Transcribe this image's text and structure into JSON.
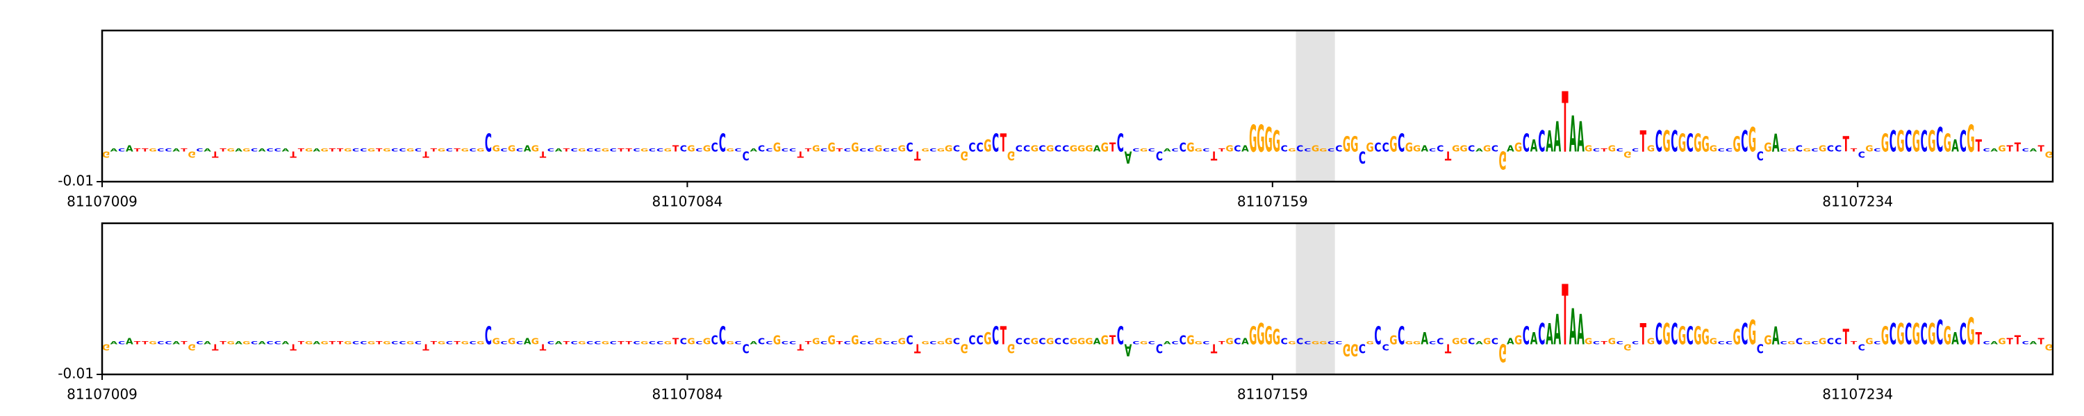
{
  "chart_data": [
    {
      "type": "logo",
      "xlim": [
        81107009,
        81107259
      ],
      "xticks": [
        81107009,
        81107084,
        81107159,
        81107234
      ],
      "ylim": [
        -0.01,
        0.04
      ],
      "yticks": [
        -0.01
      ],
      "highlight": [
        81107162,
        81107167
      ],
      "colors": {
        "A": "#008000",
        "C": "#0000ff",
        "G": "#ffa500",
        "T": "#ff0000"
      },
      "letters": [
        "G",
        "A",
        "C",
        "A",
        "T",
        "T",
        "G",
        "C",
        "C",
        "A",
        "T",
        "G",
        "C",
        "A",
        "T",
        "T",
        "G",
        "A",
        "G",
        "C",
        "A",
        "C",
        "C",
        "A",
        "T",
        "T",
        "G",
        "A",
        "G",
        "T",
        "T",
        "G",
        "C",
        "C",
        "G",
        "T",
        "G",
        "C",
        "C",
        "G",
        "C",
        "T",
        "T",
        "G",
        "C",
        "T",
        "G",
        "C",
        "G",
        "C",
        "G",
        "C",
        "G",
        "C",
        "A",
        "G",
        "T",
        "C",
        "A",
        "T",
        "C",
        "G",
        "C",
        "C",
        "G",
        "C",
        "T",
        "T",
        "C",
        "G",
        "C",
        "C",
        "G",
        "T",
        "C",
        "G",
        "C",
        "G",
        "C",
        "C",
        "G",
        "C",
        "C",
        "A",
        "C",
        "C",
        "G",
        "C",
        "C",
        "T",
        "T",
        "G",
        "C",
        "G",
        "T",
        "C",
        "G",
        "C",
        "C",
        "G",
        "C",
        "C",
        "G",
        "C",
        "T",
        "G",
        "C",
        "G",
        "G",
        "C",
        "G",
        "C",
        "C",
        "G",
        "C",
        "T",
        "G",
        "C",
        "C",
        "G",
        "C",
        "G",
        "C",
        "C",
        "G",
        "G",
        "G",
        "A",
        "G",
        "T",
        "C",
        "A",
        "C",
        "G",
        "C",
        "C",
        "A",
        "C",
        "C",
        "G",
        "G",
        "C",
        "T",
        "T",
        "G",
        "C",
        "A",
        "G",
        "G",
        "G",
        "G",
        "C",
        "G",
        "C",
        "C",
        "G",
        "G",
        "C",
        "C",
        "G",
        "G",
        "C",
        "G",
        "C",
        "C",
        "G",
        "C",
        "G",
        "G",
        "A",
        "C",
        "C",
        "T",
        "G",
        "G",
        "C",
        "A",
        "G",
        "C",
        "G",
        "A",
        "G",
        "C",
        "A",
        "C",
        "A",
        "A",
        "T",
        "A",
        "A",
        "G",
        "C",
        "T",
        "G",
        "C",
        "G",
        "C",
        "T",
        "G",
        "C",
        "G",
        "C",
        "G",
        "C",
        "G",
        "G",
        "G",
        "C",
        "C",
        "G",
        "C",
        "G",
        "C",
        "G",
        "A",
        "C",
        "G",
        "C",
        "G",
        "C",
        "G",
        "C",
        "C",
        "T",
        "T",
        "C",
        "G",
        "C",
        "G",
        "C",
        "G",
        "C",
        "G",
        "C",
        "G",
        "C",
        "G",
        "A",
        "C",
        "G",
        "T",
        "C",
        "A",
        "G",
        "T",
        "T",
        "C",
        "A",
        "T",
        "G"
      ],
      "values": [
        -0.002,
        0.001,
        0.001,
        0.002,
        0.001,
        0.001,
        0.001,
        0.001,
        0.001,
        0.001,
        0.001,
        -0.002,
        0.001,
        0.001,
        -0.002,
        0.001,
        0.001,
        0.001,
        0.001,
        0.001,
        0.001,
        0.001,
        0.001,
        0.001,
        -0.002,
        0.001,
        0.001,
        0.001,
        0.001,
        0.001,
        0.001,
        0.001,
        0.001,
        0.001,
        0.001,
        0.001,
        0.001,
        0.001,
        0.001,
        0.001,
        0.001,
        -0.002,
        0.001,
        0.001,
        0.001,
        0.001,
        0.001,
        0.001,
        0.001,
        0.006,
        0.002,
        0.001,
        0.002,
        0.001,
        0.002,
        0.002,
        -0.002,
        0.001,
        0.001,
        0.001,
        0.001,
        0.001,
        0.001,
        0.001,
        0.001,
        0.001,
        0.001,
        0.001,
        0.001,
        0.001,
        0.001,
        0.001,
        0.001,
        0.002,
        0.002,
        0.002,
        0.001,
        0.002,
        0.003,
        0.006,
        0.001,
        0.001,
        -0.003,
        0.001,
        0.002,
        0.001,
        0.003,
        0.001,
        0.001,
        -0.002,
        0.001,
        0.002,
        0.001,
        0.003,
        0.001,
        0.001,
        0.003,
        0.001,
        0.001,
        0.002,
        0.001,
        0.001,
        0.002,
        0.003,
        -0.003,
        0.001,
        0.001,
        0.001,
        0.002,
        0.002,
        -0.003,
        0.003,
        0.003,
        0.004,
        0.006,
        0.006,
        -0.003,
        0.002,
        0.002,
        0.002,
        0.002,
        0.002,
        0.002,
        0.002,
        0.002,
        0.002,
        0.002,
        0.002,
        0.003,
        0.003,
        0.006,
        -0.004,
        0.001,
        0.001,
        0.001,
        -0.003,
        0.001,
        0.001,
        0.003,
        0.003,
        0.001,
        0.001,
        -0.003,
        0.001,
        0.002,
        0.002,
        0.002,
        0.009,
        0.009,
        0.008,
        0.007,
        0.002,
        0.001,
        0.002,
        0.001,
        0.002,
        0.001,
        0.001,
        0.002,
        0.005,
        0.005,
        -0.004,
        0.003,
        0.003,
        0.003,
        0.005,
        0.006,
        0.003,
        0.002,
        0.002,
        0.001,
        0.002,
        -0.003,
        0.002,
        0.002,
        0.002,
        0.001,
        0.002,
        0.002,
        -0.006,
        0.002,
        0.003,
        0.006,
        0.004,
        0.007,
        0.007,
        0.01,
        0.02,
        0.012,
        0.01,
        0.002,
        0.001,
        0.001,
        0.002,
        0.001,
        -0.002,
        0.001,
        0.007,
        0.002,
        0.007,
        0.007,
        0.007,
        0.006,
        0.006,
        0.006,
        0.005,
        0.002,
        0.001,
        0.001,
        0.005,
        0.007,
        0.008,
        -0.003,
        0.003,
        0.006,
        0.001,
        0.001,
        0.002,
        0.001,
        0.001,
        0.002,
        0.002,
        0.002,
        0.005,
        0.001,
        -0.002,
        0.002,
        0.001,
        0.006,
        0.007,
        0.007,
        0.007,
        0.007,
        0.007,
        0.007,
        0.008,
        0.006,
        0.004,
        0.007,
        0.009,
        0.004,
        0.001,
        0.001,
        0.002,
        0.002,
        0.003,
        0.001,
        0.001,
        0.002,
        -0.002
      ]
    },
    {
      "type": "logo",
      "xlim": [
        81107009,
        81107259
      ],
      "xticks": [
        81107009,
        81107084,
        81107159,
        81107234
      ],
      "ylim": [
        -0.01,
        0.04
      ],
      "yticks": [
        -0.01
      ],
      "highlight": [
        81107162,
        81107167
      ],
      "colors": {
        "A": "#008000",
        "C": "#0000ff",
        "G": "#ffa500",
        "T": "#ff0000"
      },
      "letters": [
        "G",
        "A",
        "C",
        "A",
        "T",
        "T",
        "G",
        "C",
        "C",
        "A",
        "T",
        "G",
        "C",
        "A",
        "T",
        "T",
        "G",
        "A",
        "G",
        "C",
        "A",
        "C",
        "C",
        "A",
        "T",
        "T",
        "G",
        "A",
        "G",
        "T",
        "T",
        "G",
        "C",
        "C",
        "G",
        "T",
        "G",
        "C",
        "C",
        "G",
        "C",
        "T",
        "T",
        "G",
        "C",
        "T",
        "G",
        "C",
        "G",
        "C",
        "G",
        "C",
        "G",
        "C",
        "A",
        "G",
        "T",
        "C",
        "A",
        "T",
        "C",
        "G",
        "C",
        "C",
        "G",
        "C",
        "T",
        "T",
        "C",
        "G",
        "C",
        "C",
        "G",
        "T",
        "C",
        "G",
        "C",
        "G",
        "C",
        "C",
        "G",
        "C",
        "C",
        "A",
        "C",
        "C",
        "G",
        "C",
        "C",
        "T",
        "T",
        "G",
        "C",
        "G",
        "T",
        "C",
        "G",
        "C",
        "C",
        "G",
        "C",
        "C",
        "G",
        "C",
        "T",
        "G",
        "C",
        "G",
        "G",
        "C",
        "G",
        "C",
        "C",
        "G",
        "C",
        "T",
        "G",
        "C",
        "C",
        "G",
        "C",
        "G",
        "C",
        "C",
        "G",
        "G",
        "G",
        "A",
        "G",
        "T",
        "C",
        "A",
        "C",
        "G",
        "C",
        "C",
        "A",
        "C",
        "C",
        "G",
        "G",
        "C",
        "T",
        "T",
        "G",
        "C",
        "A",
        "G",
        "G",
        "G",
        "G",
        "C",
        "G",
        "C",
        "C",
        "G",
        "G",
        "C",
        "C",
        "G",
        "G",
        "C",
        "G",
        "C",
        "C",
        "G",
        "C",
        "G",
        "G",
        "A",
        "C",
        "C",
        "T",
        "G",
        "G",
        "C",
        "A",
        "G",
        "C",
        "G",
        "A",
        "G",
        "C",
        "A",
        "C",
        "A",
        "A",
        "T",
        "A",
        "A",
        "G",
        "C",
        "T",
        "G",
        "C",
        "G",
        "C",
        "T",
        "G",
        "C",
        "G",
        "C",
        "G",
        "C",
        "G",
        "G",
        "G",
        "C",
        "C",
        "G",
        "C",
        "G",
        "C",
        "G",
        "A",
        "C",
        "G",
        "C",
        "G",
        "C",
        "G",
        "C",
        "C",
        "T",
        "T",
        "C",
        "G",
        "C",
        "G",
        "C",
        "G",
        "C",
        "G",
        "C",
        "G",
        "C",
        "G",
        "A",
        "C",
        "G",
        "T",
        "C",
        "A",
        "G",
        "T",
        "T",
        "C",
        "A",
        "T",
        "G"
      ],
      "values": [
        -0.002,
        0.001,
        0.001,
        0.002,
        0.001,
        0.001,
        0.001,
        0.001,
        0.001,
        0.001,
        0.001,
        -0.002,
        0.001,
        0.001,
        -0.002,
        0.001,
        0.001,
        0.001,
        0.001,
        0.001,
        0.001,
        0.001,
        0.001,
        0.001,
        -0.002,
        0.001,
        0.001,
        0.001,
        0.001,
        0.001,
        0.001,
        0.001,
        0.001,
        0.001,
        0.001,
        0.001,
        0.001,
        0.001,
        0.001,
        0.001,
        0.001,
        -0.002,
        0.001,
        0.001,
        0.001,
        0.001,
        0.001,
        0.001,
        0.001,
        0.006,
        0.002,
        0.001,
        0.002,
        0.001,
        0.002,
        0.002,
        -0.002,
        0.001,
        0.001,
        0.001,
        0.001,
        0.001,
        0.001,
        0.001,
        0.001,
        0.001,
        0.001,
        0.001,
        0.001,
        0.001,
        0.001,
        0.001,
        0.001,
        0.002,
        0.002,
        0.002,
        0.001,
        0.002,
        0.003,
        0.006,
        0.001,
        0.001,
        -0.003,
        0.001,
        0.002,
        0.001,
        0.003,
        0.001,
        0.001,
        -0.002,
        0.001,
        0.002,
        0.001,
        0.003,
        0.001,
        0.001,
        0.003,
        0.001,
        0.001,
        0.002,
        0.001,
        0.001,
        0.002,
        0.003,
        -0.003,
        0.001,
        0.001,
        0.001,
        0.002,
        0.002,
        -0.003,
        0.003,
        0.003,
        0.004,
        0.006,
        0.006,
        -0.003,
        0.002,
        0.002,
        0.002,
        0.002,
        0.002,
        0.002,
        0.002,
        0.002,
        0.002,
        0.002,
        0.002,
        0.003,
        0.003,
        0.006,
        -0.004,
        0.001,
        0.001,
        0.001,
        -0.003,
        0.001,
        0.001,
        0.003,
        0.003,
        0.001,
        0.001,
        -0.003,
        0.001,
        0.002,
        0.002,
        0.002,
        0.006,
        0.007,
        0.006,
        0.005,
        0.002,
        0.001,
        0.002,
        0.001,
        0.001,
        0.001,
        0.001,
        0.001,
        -0.004,
        -0.004,
        -0.003,
        0.001,
        0.006,
        -0.002,
        0.003,
        0.006,
        0.001,
        0.001,
        0.004,
        0.001,
        0.002,
        -0.003,
        0.002,
        0.002,
        0.002,
        0.001,
        0.002,
        0.002,
        -0.006,
        0.002,
        0.003,
        0.006,
        0.004,
        0.007,
        0.007,
        0.01,
        0.02,
        0.012,
        0.01,
        0.002,
        0.001,
        0.001,
        0.002,
        0.001,
        -0.002,
        0.001,
        0.007,
        0.002,
        0.007,
        0.007,
        0.007,
        0.006,
        0.006,
        0.006,
        0.005,
        0.002,
        0.001,
        0.001,
        0.005,
        0.007,
        0.008,
        -0.003,
        0.003,
        0.006,
        0.001,
        0.001,
        0.002,
        0.001,
        0.001,
        0.002,
        0.002,
        0.002,
        0.005,
        0.001,
        -0.002,
        0.002,
        0.001,
        0.006,
        0.007,
        0.007,
        0.007,
        0.007,
        0.007,
        0.007,
        0.008,
        0.006,
        0.004,
        0.007,
        0.009,
        0.004,
        0.001,
        0.001,
        0.002,
        0.002,
        0.003,
        0.001,
        0.001,
        0.002,
        -0.002
      ]
    }
  ]
}
